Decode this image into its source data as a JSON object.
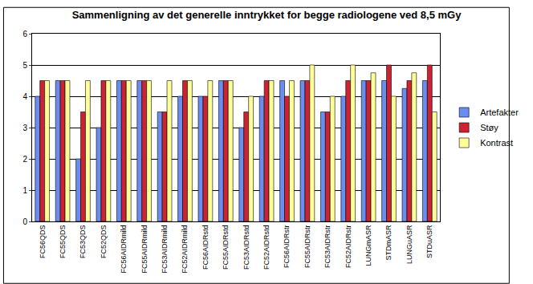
{
  "chart_data": {
    "type": "bar",
    "title": "Sammenligning av det generelle inntrykket for begge radiologene ved 8,5 mGy",
    "categories": [
      "FC56QDS",
      "FC55QDS",
      "FC53QDS",
      "FC52QDS",
      "FC56AIDRmild",
      "FC55AIDRmild",
      "FC53AIDRmild",
      "FC52AIDRmild",
      "FC56AIDRstd",
      "FC55AIDRstd",
      "FC53AIDRstd",
      "FC52AIDRstd",
      "FC56AIDRstr",
      "FC55AIDRstr",
      "FC53AIDRstr",
      "FC52AIDRstr",
      "LUNGmASR",
      "STDmASR",
      "LUNGuASR",
      "STDuASR"
    ],
    "series": [
      {
        "name": "Artefakter",
        "color": "#6a8ef0",
        "values": [
          4,
          4.5,
          2,
          3,
          4.5,
          4.5,
          3.5,
          4,
          4,
          4.5,
          3,
          4,
          4.5,
          4.5,
          3.5,
          4,
          4.5,
          4.5,
          4.25,
          4.5
        ]
      },
      {
        "name": "Støy",
        "color": "#cc2233",
        "values": [
          4.5,
          4.5,
          3.5,
          4.5,
          4.5,
          4.5,
          3.5,
          4.5,
          4,
          4.5,
          3.5,
          4.5,
          4,
          4.5,
          3.5,
          4.5,
          4.5,
          5,
          4.5,
          5
        ]
      },
      {
        "name": "Kontrast",
        "color": "#ffff99",
        "values": [
          4.5,
          4.5,
          4.5,
          4.5,
          4.5,
          4.5,
          4.5,
          4.5,
          4.5,
          4.5,
          4,
          4.5,
          4.5,
          5,
          4,
          5,
          4.75,
          4,
          4.75,
          3.5
        ]
      }
    ],
    "ylim": [
      0,
      6
    ],
    "yticks": [
      0,
      1,
      2,
      3,
      4,
      5,
      6
    ],
    "grid": true,
    "legend": "right"
  }
}
